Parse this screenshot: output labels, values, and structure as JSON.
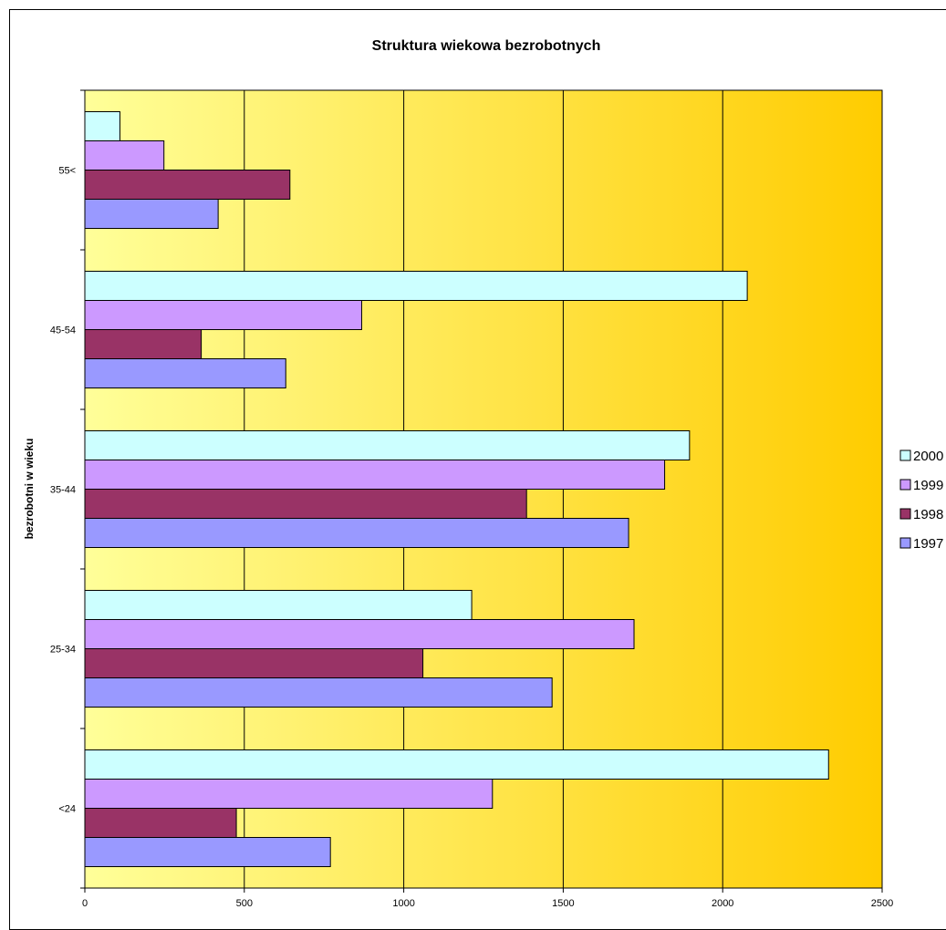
{
  "chart_data": {
    "type": "bar",
    "orientation": "horizontal",
    "title": "Struktura wiekowa bezrobotnych",
    "ylabel": "bezrobotni w wieku",
    "xlabel": "",
    "categories": [
      "<24",
      "25-34",
      "35-44",
      "45-54",
      "55<"
    ],
    "xlim": [
      0,
      2500
    ],
    "xticks": [
      0,
      500,
      1000,
      1500,
      2000,
      2500
    ],
    "grid": true,
    "legend_position": "right",
    "background_gradient": [
      "#ffff99",
      "#ffcc00"
    ],
    "series": [
      {
        "name": "1997",
        "color": "#9999ff",
        "values": [
          770,
          1465,
          1705,
          630,
          418
        ]
      },
      {
        "name": "1998",
        "color": "#993366",
        "values": [
          475,
          1060,
          1385,
          365,
          643
        ]
      },
      {
        "name": "1999",
        "color": "#cc99ff",
        "values": [
          1278,
          1722,
          1818,
          868,
          248
        ]
      },
      {
        "name": "2000",
        "color": "#ccffff",
        "values": [
          2332,
          1213,
          1896,
          2077,
          110
        ]
      }
    ],
    "legend_labels": [
      "2000",
      "1999",
      "1998",
      "1997"
    ]
  }
}
